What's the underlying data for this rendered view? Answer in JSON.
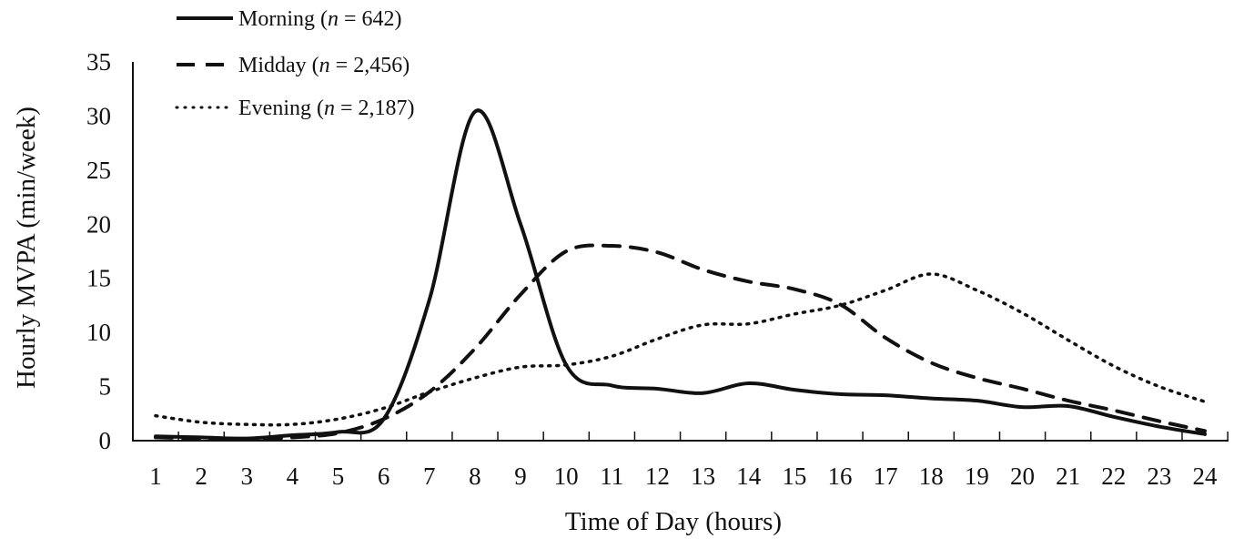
{
  "chart_data": {
    "type": "line",
    "title": "",
    "xlabel": "Time of Day (hours)",
    "ylabel": "Hourly MVPA (min/week)",
    "ylim": [
      0,
      35
    ],
    "yticks": [
      "0",
      "5",
      "10",
      "15",
      "20",
      "25",
      "30",
      "35"
    ],
    "categories": [
      "1",
      "2",
      "3",
      "4",
      "5",
      "6",
      "7",
      "8",
      "9",
      "10",
      "11",
      "12",
      "13",
      "14",
      "15",
      "16",
      "17",
      "18",
      "19",
      "20",
      "21",
      "22",
      "23",
      "24"
    ],
    "grid": false,
    "legend_position": "top-left",
    "series": [
      {
        "name": "Morning",
        "n_label": "n",
        "n_value": " = 642)",
        "name_prefix": "Morning (",
        "style": "solid",
        "color": "#111111",
        "values": [
          0.4,
          0.3,
          0.2,
          0.5,
          0.8,
          2.0,
          13.0,
          30.4,
          20.0,
          7.0,
          5.1,
          4.8,
          4.4,
          5.3,
          4.7,
          4.3,
          4.2,
          3.9,
          3.7,
          3.1,
          3.2,
          2.2,
          1.3,
          0.6
        ]
      },
      {
        "name": "Midday",
        "n_label": "n",
        "n_value": " = 2,456)",
        "name_prefix": "Midday (",
        "style": "dashed",
        "color": "#111111",
        "values": [
          0.3,
          0.2,
          0.1,
          0.3,
          0.7,
          2.0,
          4.5,
          8.5,
          13.5,
          17.5,
          18.0,
          17.4,
          15.8,
          14.7,
          14.0,
          12.6,
          9.5,
          7.2,
          5.8,
          4.8,
          3.7,
          2.8,
          1.8,
          0.9
        ]
      },
      {
        "name": "Evening",
        "n_label": "n",
        "n_value": " = 2,187)",
        "name_prefix": "Evening (",
        "style": "dotted",
        "color": "#111111",
        "values": [
          2.3,
          1.7,
          1.5,
          1.5,
          2.0,
          3.0,
          4.5,
          5.8,
          6.8,
          7.0,
          7.8,
          9.4,
          10.7,
          10.8,
          11.7,
          12.5,
          13.9,
          15.4,
          13.9,
          11.8,
          9.3,
          6.9,
          5.0,
          3.6
        ]
      }
    ]
  }
}
